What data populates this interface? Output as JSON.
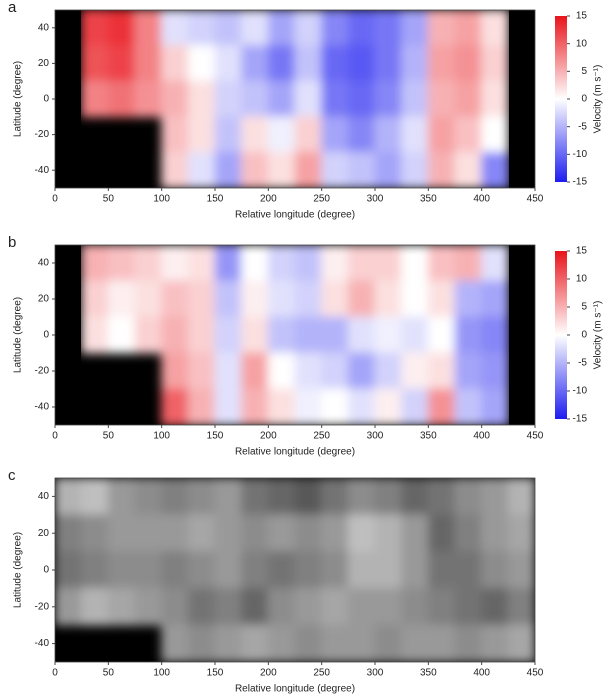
{
  "chart_data": [
    {
      "type": "heatmap",
      "label": "a",
      "xlabel": "Relative longitude (degree)",
      "ylabel": "Latitude (degree)",
      "x": [
        12.5,
        37.5,
        62.5,
        87.5,
        112.5,
        137.5,
        162.5,
        187.5,
        212.5,
        237.5,
        262.5,
        287.5,
        312.5,
        337.5,
        362.5,
        387.5,
        412.5,
        437.5
      ],
      "y": [
        40,
        20,
        0,
        -20,
        -40
      ],
      "values": [
        [
          null,
          12,
          13,
          8,
          -2,
          -3,
          -4,
          -2,
          -6,
          -3,
          -8,
          -10,
          -9,
          -6,
          5,
          6,
          2,
          null
        ],
        [
          null,
          11,
          12,
          8,
          3,
          0,
          -2,
          -6,
          -9,
          -4,
          -10,
          -11,
          -9,
          -5,
          6,
          7,
          3,
          null
        ],
        [
          null,
          8,
          9,
          7,
          5,
          2,
          -3,
          -4,
          -6,
          -2,
          -9,
          -10,
          -8,
          -4,
          5,
          6,
          2,
          null
        ],
        [
          null,
          null,
          null,
          null,
          4,
          2,
          -4,
          2,
          -1,
          3,
          -6,
          -8,
          -5,
          -2,
          6,
          4,
          0,
          null
        ],
        [
          null,
          null,
          null,
          null,
          3,
          -2,
          -6,
          4,
          2,
          6,
          -3,
          -4,
          -6,
          -3,
          5,
          2,
          -8,
          null
        ]
      ],
      "xlim": [
        0,
        450
      ],
      "ylim": [
        -50,
        50
      ],
      "xticks": [
        0,
        50,
        100,
        150,
        200,
        250,
        300,
        350,
        400,
        450
      ],
      "yticks": [
        -40,
        -20,
        0,
        20,
        40
      ],
      "colormap": "bwr",
      "missing_color": "#000000",
      "colorbar": {
        "label": "Velocity (m s⁻¹)",
        "lim": [
          -15,
          15
        ],
        "ticks": [
          -15,
          -10,
          -5,
          0,
          5,
          10,
          15
        ]
      }
    },
    {
      "type": "heatmap",
      "label": "b",
      "xlabel": "Relative longitude (degree)",
      "ylabel": "Latitude (degree)",
      "x": [
        12.5,
        37.5,
        62.5,
        87.5,
        112.5,
        137.5,
        162.5,
        187.5,
        212.5,
        237.5,
        262.5,
        287.5,
        312.5,
        337.5,
        362.5,
        387.5,
        412.5,
        437.5
      ],
      "y": [
        40,
        20,
        0,
        -20,
        -40
      ],
      "values": [
        [
          null,
          5,
          4,
          3,
          1,
          2,
          -7,
          0,
          -3,
          -4,
          1,
          3,
          3,
          0,
          4,
          5,
          -2,
          null
        ],
        [
          null,
          3,
          1,
          2,
          4,
          3,
          -4,
          1,
          -2,
          -3,
          2,
          5,
          2,
          0,
          2,
          -5,
          -6,
          null
        ],
        [
          null,
          2,
          0,
          3,
          5,
          3,
          -3,
          2,
          -4,
          -5,
          -5,
          -2,
          -1,
          -2,
          0,
          -7,
          -8,
          null
        ],
        [
          null,
          null,
          null,
          null,
          6,
          4,
          -2,
          6,
          0,
          -2,
          -3,
          -6,
          -3,
          1,
          2,
          -6,
          -7,
          null
        ],
        [
          null,
          null,
          null,
          null,
          10,
          5,
          -2,
          5,
          2,
          -1,
          0,
          -2,
          1,
          -3,
          7,
          -4,
          -6,
          null
        ]
      ],
      "xlim": [
        0,
        450
      ],
      "ylim": [
        -50,
        50
      ],
      "xticks": [
        0,
        50,
        100,
        150,
        200,
        250,
        300,
        350,
        400,
        450
      ],
      "yticks": [
        -40,
        -20,
        0,
        20,
        40
      ],
      "colormap": "bwr",
      "missing_color": "#000000",
      "colorbar": {
        "label": "Velocity (m s⁻¹)",
        "lim": [
          -15,
          15
        ],
        "ticks": [
          -15,
          -10,
          -5,
          0,
          5,
          10,
          15
        ]
      }
    },
    {
      "type": "heatmap",
      "label": "c",
      "xlabel": "Relative longitude (degree)",
      "ylabel": "Latitude (degree)",
      "x": [
        12.5,
        37.5,
        62.5,
        87.5,
        112.5,
        137.5,
        162.5,
        187.5,
        212.5,
        237.5,
        262.5,
        287.5,
        312.5,
        337.5,
        362.5,
        387.5,
        412.5,
        437.5
      ],
      "y": [
        40,
        20,
        0,
        -20,
        -40
      ],
      "values": [
        [
          0.7,
          0.75,
          0.6,
          0.55,
          0.5,
          0.55,
          0.6,
          0.45,
          0.4,
          0.35,
          0.45,
          0.55,
          0.5,
          0.4,
          0.45,
          0.55,
          0.6,
          0.7
        ],
        [
          0.5,
          0.55,
          0.6,
          0.6,
          0.6,
          0.65,
          0.6,
          0.55,
          0.6,
          0.55,
          0.6,
          0.75,
          0.7,
          0.6,
          0.4,
          0.5,
          0.6,
          0.65
        ],
        [
          0.45,
          0.5,
          0.55,
          0.55,
          0.5,
          0.55,
          0.6,
          0.5,
          0.45,
          0.5,
          0.55,
          0.7,
          0.7,
          0.6,
          0.45,
          0.45,
          0.55,
          0.6
        ],
        [
          0.6,
          0.7,
          0.65,
          0.6,
          0.55,
          0.45,
          0.5,
          0.4,
          0.55,
          0.6,
          0.65,
          0.6,
          0.6,
          0.55,
          0.5,
          0.45,
          0.4,
          0.5
        ],
        [
          null,
          null,
          null,
          null,
          0.6,
          0.55,
          0.6,
          0.65,
          0.6,
          0.55,
          0.6,
          0.6,
          0.55,
          0.6,
          0.6,
          0.55,
          0.6,
          0.65
        ]
      ],
      "xlim": [
        0,
        450
      ],
      "ylim": [
        -50,
        50
      ],
      "xticks": [
        0,
        50,
        100,
        150,
        200,
        250,
        300,
        350,
        400,
        450
      ],
      "yticks": [
        -40,
        -20,
        0,
        20,
        40
      ],
      "colormap": "gray",
      "missing_color": "#000000"
    }
  ]
}
